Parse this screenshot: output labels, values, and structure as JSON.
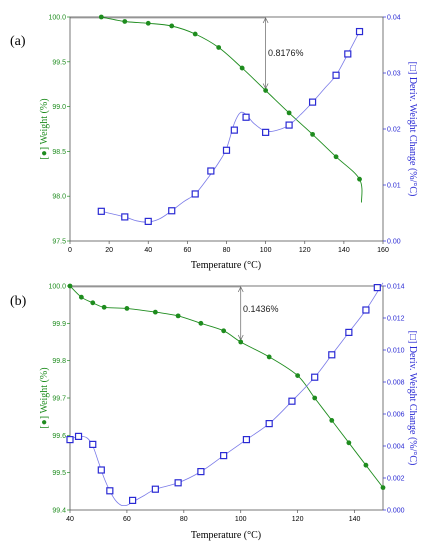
{
  "colors": {
    "weight": "#1e8c1e",
    "deriv": "#2a2ad4",
    "axis_left": "#1e8c1e",
    "axis_right": "#2a2ad4"
  },
  "chart_data": [
    {
      "type": "line",
      "panel_label": "(a)",
      "xlabel": "Temperature (°C)",
      "ylabel_left": "[●] Weight (%)",
      "ylabel_right": "[□] Deriv. Weight Change (%/°C)",
      "xlim": [
        0,
        160
      ],
      "xticks": [
        "0",
        "20",
        "40",
        "60",
        "80",
        "100",
        "120",
        "140",
        "160"
      ],
      "ylim_left": [
        97.5,
        100.0
      ],
      "yticks_left": [
        "97.5",
        "98.0",
        "98.5",
        "99.0",
        "99.5",
        "100.0"
      ],
      "ylim_right": [
        0.0,
        0.04
      ],
      "yticks_right": [
        "0.00",
        "0.01",
        "0.02",
        "0.03",
        "0.04"
      ],
      "annotation": "0.8176%",
      "annotation_x": 100,
      "grid": false,
      "series": [
        {
          "name": "Weight (%)",
          "axis": "left",
          "marker": "filled-circle",
          "x": [
            16,
            28,
            40,
            52,
            64,
            76,
            88,
            100,
            112,
            124,
            136,
            148
          ],
          "y": [
            100.0,
            99.95,
            99.93,
            99.9,
            99.81,
            99.66,
            99.43,
            99.18,
            98.93,
            98.69,
            98.44,
            98.19
          ],
          "x_end": 149,
          "y_end": 97.93
        },
        {
          "name": "Deriv. Weight Change (%/°C)",
          "axis": "right",
          "marker": "open-square",
          "x": [
            16,
            28,
            40,
            52,
            64,
            72,
            80,
            84,
            90,
            100,
            112,
            124,
            136,
            142,
            148
          ],
          "y": [
            0.0053,
            0.0043,
            0.0035,
            0.0054,
            0.0084,
            0.0125,
            0.0162,
            0.0198,
            0.0221,
            0.0194,
            0.0207,
            0.0248,
            0.0296,
            0.0334,
            0.0374
          ],
          "curve_x": [
            16,
            28,
            34,
            40,
            46,
            52,
            58,
            64,
            70,
            76,
            80,
            84,
            87,
            90,
            94,
            100,
            106,
            112,
            118,
            124,
            130,
            136,
            142,
            148
          ],
          "curve_y": [
            0.0053,
            0.0043,
            0.0036,
            0.0034,
            0.004,
            0.0054,
            0.007,
            0.0084,
            0.011,
            0.014,
            0.0165,
            0.021,
            0.0229,
            0.0226,
            0.021,
            0.0196,
            0.0198,
            0.0207,
            0.0226,
            0.0248,
            0.0272,
            0.0296,
            0.0334,
            0.0374
          ]
        }
      ]
    },
    {
      "type": "line",
      "panel_label": "(b)",
      "xlabel": "Temperature (°C)",
      "ylabel_left": "[●] Weight (%)",
      "ylabel_right": "[□] Deriv. Weight Change (%/°C)",
      "xlim": [
        40,
        150
      ],
      "xticks": [
        "40",
        "60",
        "80",
        "100",
        "120",
        "140"
      ],
      "ylim_left": [
        99.4,
        100.0
      ],
      "yticks_left": [
        "99.4",
        "99.5",
        "99.6",
        "99.7",
        "99.8",
        "99.9",
        "100.0"
      ],
      "ylim_right": [
        0.0,
        0.014
      ],
      "yticks_right": [
        "0.000",
        "0.002",
        "0.004",
        "0.006",
        "0.008",
        "0.010",
        "0.012",
        "0.014"
      ],
      "annotation": "0.1436%",
      "annotation_x": 100,
      "grid": false,
      "series": [
        {
          "name": "Weight (%)",
          "axis": "left",
          "marker": "filled-circle",
          "x": [
            40,
            44,
            48,
            52,
            60,
            70,
            78,
            86,
            94,
            100,
            110,
            120,
            126,
            132,
            138,
            144,
            150
          ],
          "y": [
            100.0,
            99.97,
            99.955,
            99.943,
            99.94,
            99.93,
            99.92,
            99.9,
            99.88,
            99.85,
            99.81,
            99.76,
            99.7,
            99.64,
            99.58,
            99.52,
            99.46
          ],
          "x_end": 150,
          "y_end": 99.46
        },
        {
          "name": "Deriv. Weight Change (%/°C)",
          "axis": "right",
          "marker": "open-square",
          "x": [
            40,
            43,
            48,
            51,
            54,
            62,
            70,
            78,
            86,
            94,
            102,
            110,
            118,
            126,
            132,
            138,
            144,
            148
          ],
          "y": [
            0.0044,
            0.0046,
            0.0041,
            0.0025,
            0.0012,
            0.0006,
            0.0013,
            0.0017,
            0.0024,
            0.0034,
            0.0044,
            0.0054,
            0.0068,
            0.0083,
            0.0097,
            0.0111,
            0.0125,
            0.0139
          ],
          "curve_x": [
            40,
            43,
            46,
            48,
            50,
            52,
            54,
            56,
            58,
            60,
            62,
            66,
            70,
            78,
            86,
            94,
            102,
            110,
            118,
            126,
            132,
            138,
            144,
            150
          ],
          "curve_y": [
            0.0044,
            0.0046,
            0.0045,
            0.004,
            0.003,
            0.002,
            0.0012,
            0.0006,
            0.0003,
            0.0003,
            0.0005,
            0.0009,
            0.0013,
            0.0017,
            0.0024,
            0.0034,
            0.0044,
            0.0054,
            0.0068,
            0.0083,
            0.0097,
            0.0111,
            0.0125,
            0.0142
          ]
        }
      ]
    }
  ]
}
